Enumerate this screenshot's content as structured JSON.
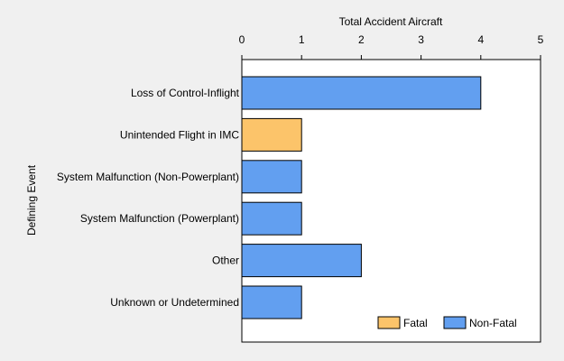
{
  "chart_data": {
    "type": "bar",
    "orientation": "horizontal",
    "stacked": true,
    "title": "",
    "xlabel": "Total Accident Aircraft",
    "ylabel": "Defining Event",
    "xlim": [
      0,
      5
    ],
    "ticks": [
      0,
      1,
      2,
      3,
      4,
      5
    ],
    "grid": false,
    "legend_position": "bottom-right",
    "categories": [
      "Loss of Control-Inflight",
      "Unintended Flight in IMC",
      "System Malfunction (Non-Powerplant)",
      "System Malfunction (Powerplant)",
      "Other",
      "Unknown or Undetermined"
    ],
    "series": [
      {
        "name": "Fatal",
        "color": "#fcc46a",
        "values": [
          0,
          1,
          0,
          0,
          0,
          0
        ]
      },
      {
        "name": "Non-Fatal",
        "color": "#629ff0",
        "values": [
          4,
          0,
          1,
          1,
          2,
          1
        ]
      }
    ]
  }
}
